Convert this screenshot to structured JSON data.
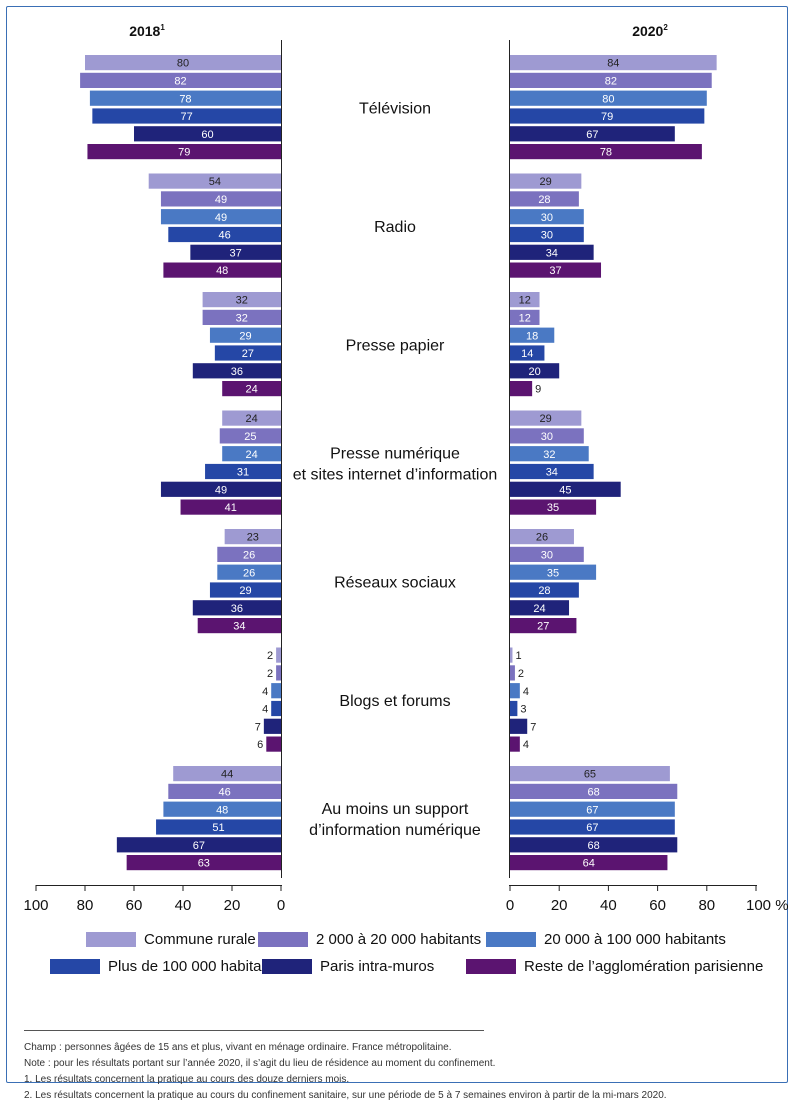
{
  "chart_data": {
    "type": "bar",
    "orientation": "horizontal",
    "panels": [
      {
        "title": "2018",
        "superscript": "1"
      },
      {
        "title": "2020",
        "superscript": "2"
      }
    ],
    "categories": [
      "Télévision",
      "Radio",
      "Presse papier",
      "Presse numérique\net sites internet d’information",
      "Réseaux sociaux",
      "Blogs et forums",
      "Au moins un support\nd’information numérique"
    ],
    "series": [
      {
        "name": "Commune rurale",
        "color": "#9e9ad2",
        "values_2018": [
          80,
          54,
          32,
          24,
          23,
          2,
          44
        ],
        "values_2020": [
          84,
          29,
          12,
          29,
          26,
          1,
          65
        ]
      },
      {
        "name": "2 000 à 20 000 habitants",
        "color": "#7b72bf",
        "values_2018": [
          82,
          49,
          32,
          25,
          26,
          2,
          46
        ],
        "values_2020": [
          82,
          28,
          12,
          30,
          30,
          2,
          68
        ]
      },
      {
        "name": "20 000 à 100 000 habitants",
        "color": "#4a79c4",
        "values_2018": [
          78,
          49,
          29,
          24,
          26,
          4,
          48
        ],
        "values_2020": [
          80,
          30,
          18,
          32,
          35,
          4,
          67
        ]
      },
      {
        "name": "Plus de 100 000 habitants",
        "color": "#2547a6",
        "values_2018": [
          77,
          46,
          27,
          31,
          29,
          4,
          51
        ],
        "values_2020": [
          79,
          30,
          14,
          34,
          28,
          3,
          67
        ]
      },
      {
        "name": "Paris intra-muros",
        "color": "#1f237a",
        "values_2018": [
          60,
          37,
          36,
          49,
          36,
          7,
          67
        ],
        "values_2020": [
          67,
          34,
          20,
          45,
          24,
          7,
          68
        ]
      },
      {
        "name": "Reste de l’agglomération parisienne",
        "color": "#5b1470",
        "values_2018": [
          79,
          48,
          24,
          41,
          34,
          6,
          63
        ],
        "values_2020": [
          78,
          37,
          9,
          35,
          27,
          4,
          64
        ]
      }
    ],
    "xlim": [
      0,
      100
    ],
    "ticks": [
      0,
      20,
      40,
      60,
      80,
      100
    ],
    "tick_labels_left": [
      "100",
      "80",
      "60",
      "40",
      "20",
      "0"
    ],
    "tick_labels_right": [
      "0",
      "20",
      "40",
      "60",
      "80",
      "100 %"
    ],
    "legend_position": "bottom"
  },
  "notes": {
    "champ": "Champ : personnes âgées de 15 ans et plus, vivant en ménage ordinaire. France métropolitaine.",
    "note": "Note : pour les résultats portant sur l’année 2020, il s’agit du lieu de résidence au moment du confinement.",
    "footnote1": "1.  Les résultats concernent la pratique au cours des douze derniers mois.",
    "footnote2": "2.  Les résultats concernent la pratique au cours du confinement sanitaire, sur une période de 5 à 7 semaines environ à partir de la mi-mars 2020."
  }
}
